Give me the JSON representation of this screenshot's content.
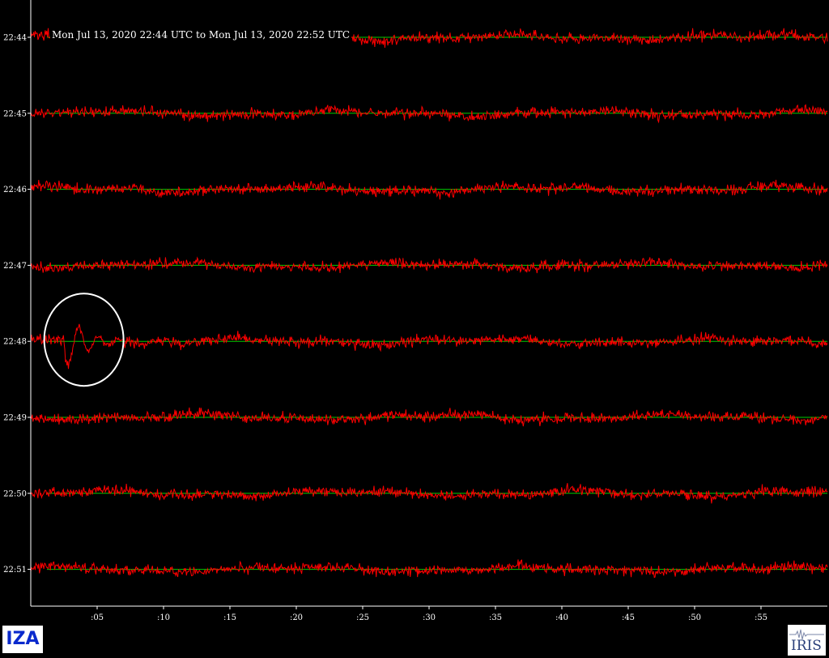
{
  "station": "IZA",
  "logo_text": "IRIS",
  "colors": {
    "background": "#000000",
    "trace": "#ff0000",
    "baseline": "#00cc00",
    "axis": "#ffffff",
    "text": "#ffffff",
    "highlight_circle": "#ffffff",
    "station_text": "#0a2acd"
  },
  "chart_data": {
    "type": "line",
    "title": "Mon Jul 13, 2020 22:44 UTC to Mon Jul 13, 2020 22:52 UTC",
    "xlabel": "",
    "ylabel": "",
    "x_range": [
      0,
      60
    ],
    "x_ticks": [
      5,
      10,
      15,
      20,
      25,
      30,
      35,
      40,
      45,
      50,
      55
    ],
    "x_tick_labels": [
      ":05",
      ":10",
      ":15",
      ":20",
      ":25",
      ":30",
      ":35",
      ":40",
      ":45",
      ":50",
      ":55"
    ],
    "rows": [
      "22:44",
      "22:45",
      "22:46",
      "22:47",
      "22:48",
      "22:49",
      "22:50",
      "22:51"
    ],
    "grid": false,
    "annotations": [
      {
        "type": "circle",
        "row": "22:48",
        "x_seconds": 4,
        "description": "event arrival"
      }
    ],
    "series": [
      {
        "row": "22:44",
        "event": null
      },
      {
        "row": "22:45",
        "event": null
      },
      {
        "row": "22:46",
        "event": null
      },
      {
        "row": "22:47",
        "event": null
      },
      {
        "row": "22:48",
        "event": {
          "start_seconds": 2.5,
          "peak_seconds": 4
        }
      },
      {
        "row": "22:49",
        "event": null
      },
      {
        "row": "22:50",
        "event": null
      },
      {
        "row": "22:51",
        "event": null
      }
    ]
  }
}
